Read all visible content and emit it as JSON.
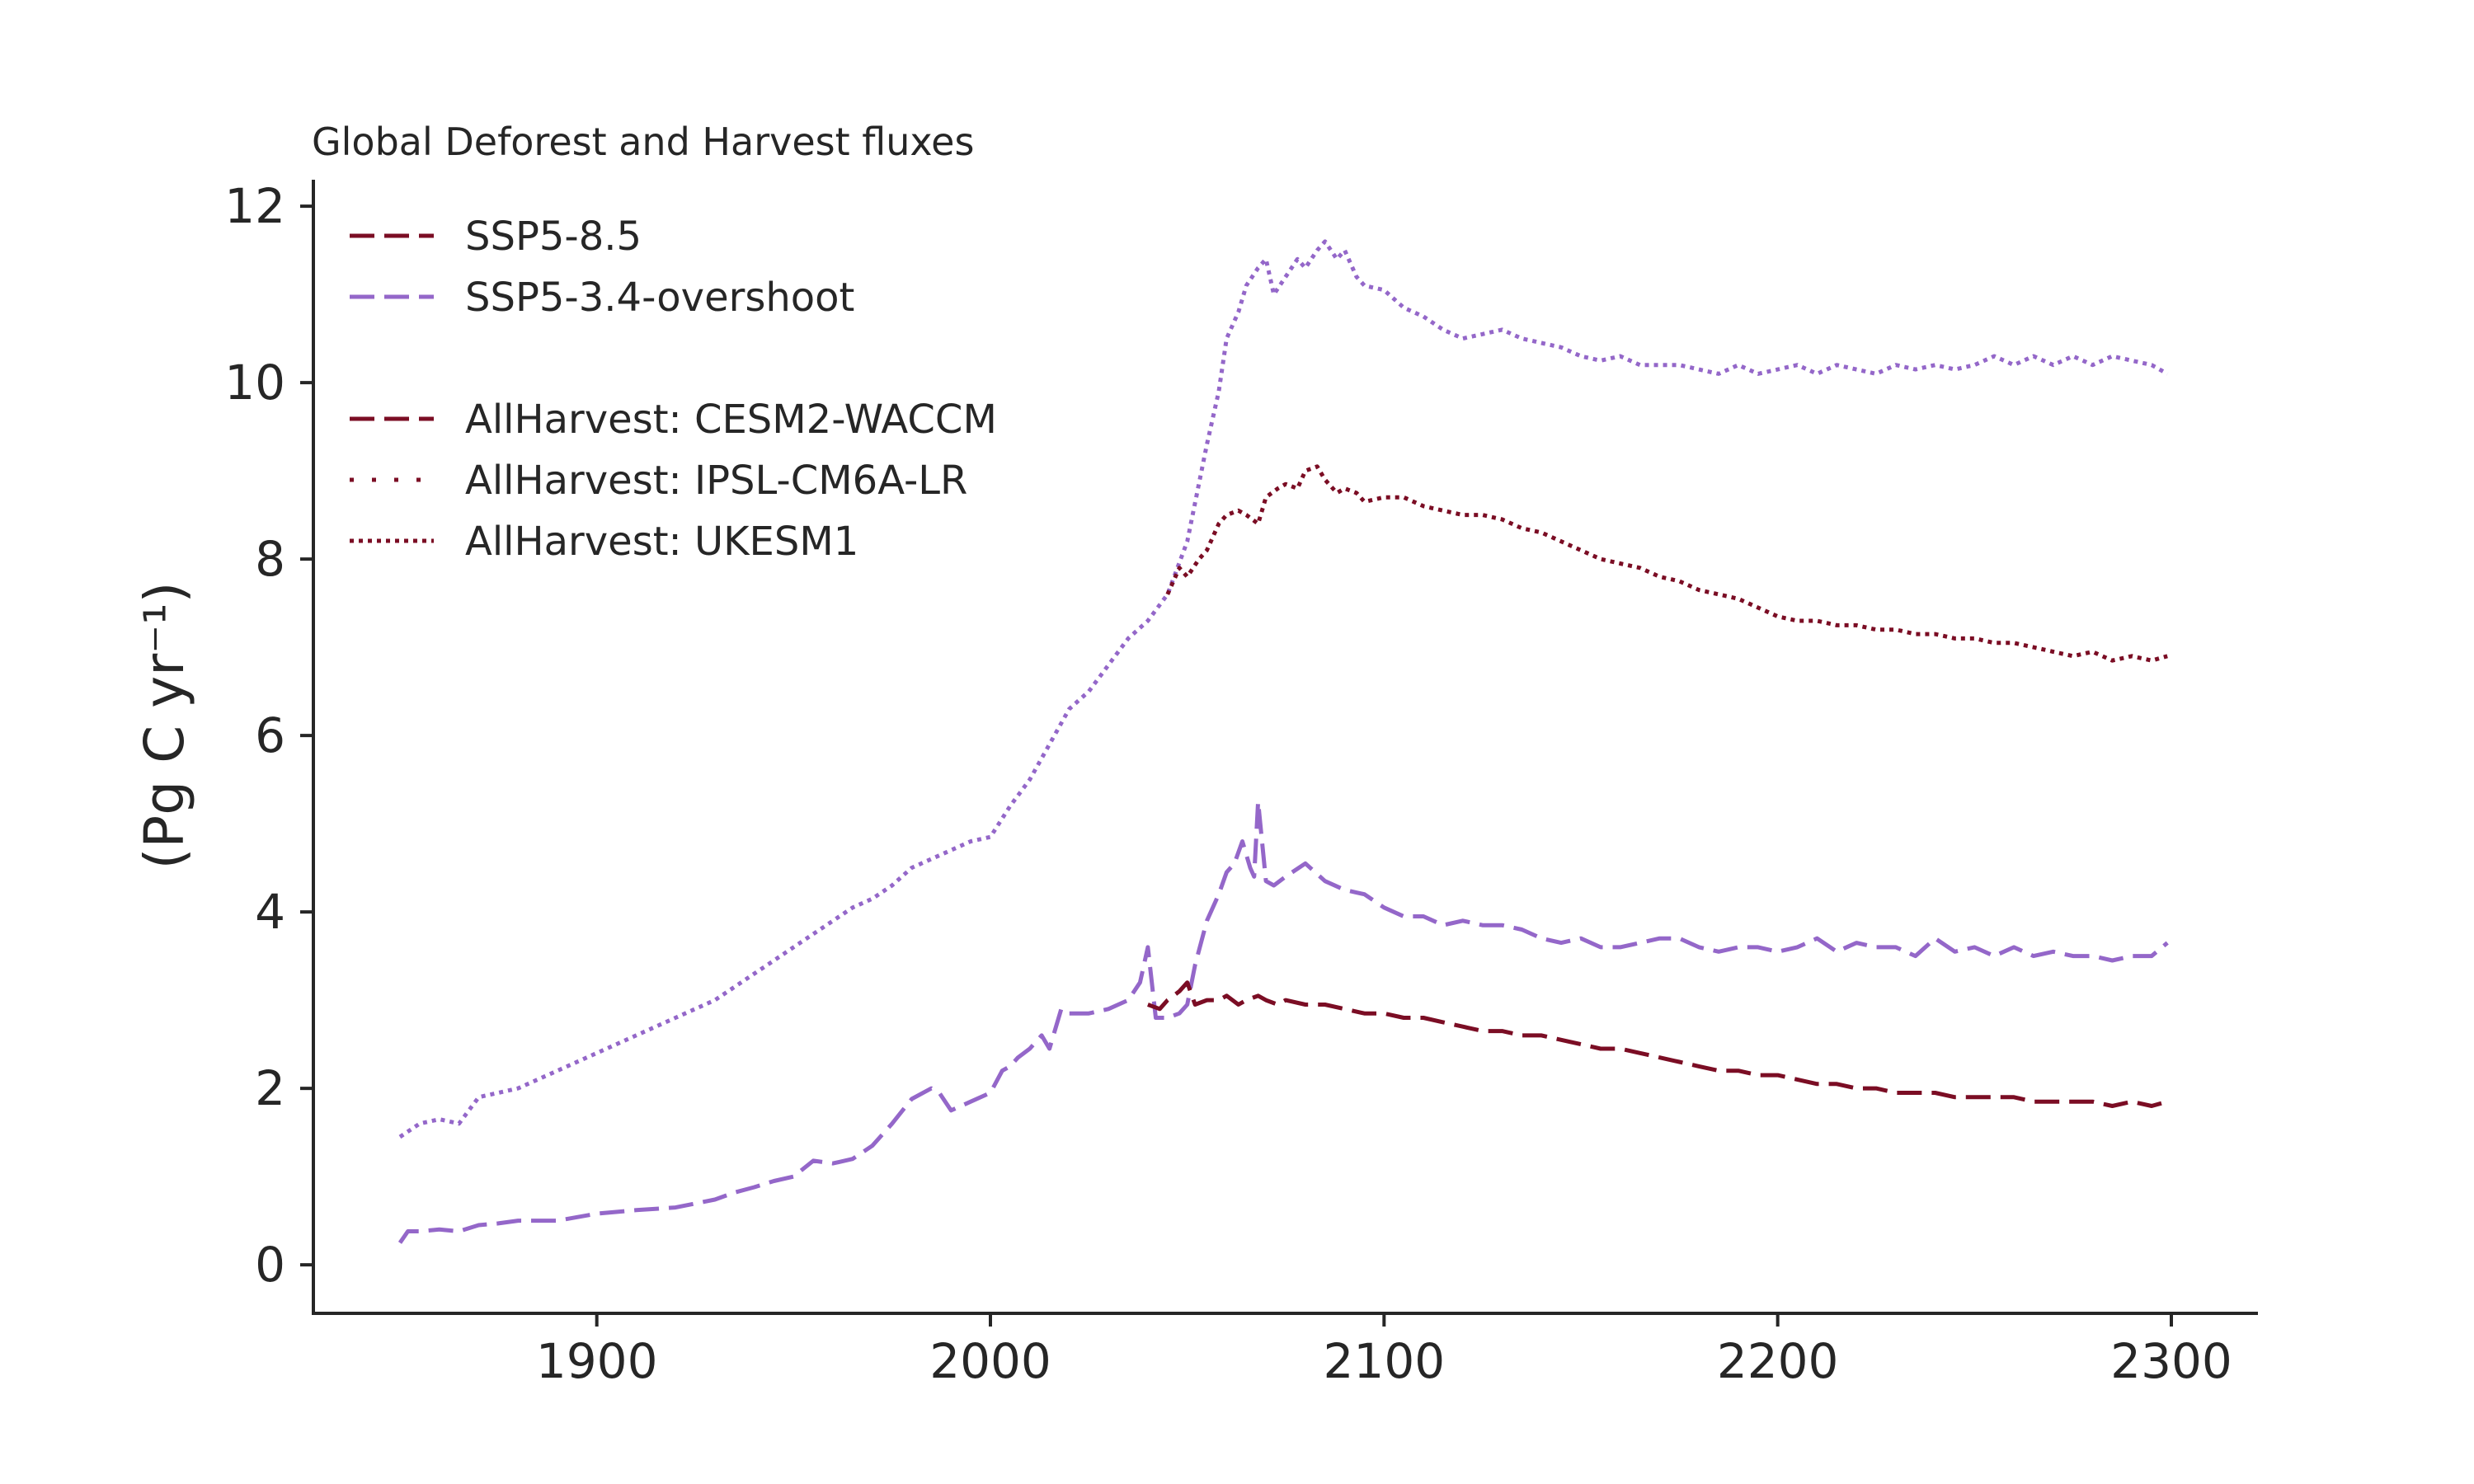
{
  "chart_data": {
    "type": "line",
    "title": "Global Deforest and Harvest fluxes",
    "xlabel": "",
    "ylabel": "(Pg C yr⁻¹)",
    "xlim": [
      1828,
      2322
    ],
    "ylim": [
      -0.55,
      12.3
    ],
    "xticks": [
      1900,
      2000,
      2100,
      2200,
      2300
    ],
    "yticks": [
      0,
      2,
      4,
      6,
      8,
      10,
      12
    ],
    "grid": false,
    "legend": "top-left",
    "colors": {
      "ssp585": "#7b0d24",
      "ssp534": "#9467c9",
      "axis": "#262626"
    },
    "legend_entries": [
      {
        "label": "SSP5-8.5",
        "color": "#7b0d24",
        "dash": "dashed"
      },
      {
        "label": "SSP5-3.4-overshoot",
        "color": "#9467c9",
        "dash": "dashed"
      },
      {
        "label": "",
        "color": "",
        "dash": "none"
      },
      {
        "label": "AllHarvest: CESM2-WACCM",
        "color": "#7b0d24",
        "dash": "dashed"
      },
      {
        "label": "AllHarvest: IPSL-CM6A-LR",
        "color": "#7b0d24",
        "dash": "sparse-dotted"
      },
      {
        "label": "AllHarvest: UKESM1",
        "color": "#7b0d24",
        "dash": "dotted"
      }
    ],
    "series": [
      {
        "scenario": "SSP5-3.4-overshoot",
        "model": "CESM2-WACCM",
        "color": "#9467c9",
        "dash": "dashed",
        "x": [
          1850,
          1852,
          1855,
          1860,
          1865,
          1870,
          1875,
          1880,
          1890,
          1900,
          1910,
          1920,
          1930,
          1935,
          1940,
          1945,
          1950,
          1955,
          1960,
          1965,
          1970,
          1975,
          1980,
          1985,
          1987,
          1990,
          1995,
          2000,
          2003,
          2005,
          2007,
          2010,
          2013,
          2015,
          2018,
          2020,
          2023,
          2025,
          2030,
          2035,
          2038,
          2040,
          2042,
          2045,
          2048,
          2050,
          2052,
          2055,
          2058,
          2060,
          2062,
          2064,
          2066,
          2067,
          2068,
          2070,
          2072,
          2075,
          2080,
          2085,
          2090,
          2095,
          2100,
          2105,
          2110,
          2115,
          2120,
          2125,
          2130,
          2135,
          2140,
          2145,
          2150,
          2155,
          2160,
          2165,
          2170,
          2175,
          2180,
          2185,
          2190,
          2195,
          2200,
          2205,
          2210,
          2215,
          2220,
          2225,
          2230,
          2235,
          2240,
          2245,
          2250,
          2255,
          2260,
          2265,
          2270,
          2275,
          2280,
          2285,
          2290,
          2295,
          2299
        ],
        "y": [
          0.25,
          0.38,
          0.38,
          0.4,
          0.38,
          0.45,
          0.47,
          0.5,
          0.5,
          0.58,
          0.62,
          0.65,
          0.74,
          0.82,
          0.88,
          0.95,
          1.0,
          1.18,
          1.15,
          1.2,
          1.35,
          1.6,
          1.88,
          2.0,
          1.95,
          1.75,
          1.85,
          1.95,
          2.2,
          2.25,
          2.35,
          2.45,
          2.6,
          2.45,
          2.9,
          2.85,
          2.85,
          2.85,
          2.9,
          3.0,
          3.2,
          3.6,
          2.8,
          2.8,
          2.85,
          2.95,
          3.4,
          3.9,
          4.2,
          4.45,
          4.55,
          4.8,
          4.5,
          4.4,
          5.25,
          4.35,
          4.3,
          4.4,
          4.55,
          4.35,
          4.25,
          4.2,
          4.05,
          3.95,
          3.95,
          3.85,
          3.9,
          3.85,
          3.85,
          3.8,
          3.7,
          3.65,
          3.7,
          3.6,
          3.6,
          3.65,
          3.7,
          3.7,
          3.6,
          3.55,
          3.6,
          3.6,
          3.55,
          3.6,
          3.7,
          3.55,
          3.65,
          3.6,
          3.6,
          3.5,
          3.7,
          3.55,
          3.6,
          3.5,
          3.6,
          3.5,
          3.55,
          3.5,
          3.5,
          3.45,
          3.5,
          3.5,
          3.65
        ]
      },
      {
        "scenario": "SSP5-8.5",
        "model": "CESM2-WACCM",
        "color": "#7b0d24",
        "dash": "dashed",
        "x": [
          2040,
          2043,
          2045,
          2048,
          2050,
          2052,
          2055,
          2058,
          2060,
          2063,
          2065,
          2068,
          2070,
          2073,
          2075,
          2080,
          2085,
          2090,
          2095,
          2100,
          2105,
          2110,
          2115,
          2120,
          2125,
          2130,
          2135,
          2140,
          2145,
          2150,
          2155,
          2160,
          2165,
          2170,
          2175,
          2180,
          2185,
          2190,
          2195,
          2200,
          2205,
          2210,
          2215,
          2220,
          2225,
          2230,
          2235,
          2240,
          2245,
          2250,
          2255,
          2260,
          2265,
          2270,
          2275,
          2280,
          2285,
          2290,
          2295,
          2299
        ],
        "y": [
          2.95,
          2.9,
          3.0,
          3.1,
          3.2,
          2.95,
          3.0,
          3.0,
          3.05,
          2.95,
          3.0,
          3.05,
          3.0,
          2.95,
          3.0,
          2.95,
          2.95,
          2.9,
          2.85,
          2.85,
          2.8,
          2.8,
          2.75,
          2.7,
          2.65,
          2.65,
          2.6,
          2.6,
          2.55,
          2.5,
          2.45,
          2.45,
          2.4,
          2.35,
          2.3,
          2.25,
          2.2,
          2.2,
          2.15,
          2.15,
          2.1,
          2.05,
          2.05,
          2.0,
          2.0,
          1.95,
          1.95,
          1.95,
          1.9,
          1.9,
          1.9,
          1.9,
          1.85,
          1.85,
          1.85,
          1.85,
          1.8,
          1.85,
          1.8,
          1.85
        ]
      },
      {
        "scenario": "SSP5-3.4-overshoot",
        "model": "UKESM1",
        "color": "#9467c9",
        "dash": "dotted",
        "x": [
          1850,
          1855,
          1860,
          1865,
          1870,
          1875,
          1880,
          1890,
          1900,
          1910,
          1920,
          1930,
          1935,
          1940,
          1945,
          1950,
          1955,
          1960,
          1965,
          1970,
          1975,
          1980,
          1985,
          1990,
          1995,
          2000,
          2005,
          2010,
          2015,
          2020,
          2025,
          2030,
          2035,
          2040,
          2045,
          2050,
          2055,
          2058,
          2060,
          2063,
          2065,
          2068,
          2070,
          2072,
          2075,
          2078,
          2080,
          2083,
          2085,
          2088,
          2090,
          2093,
          2095,
          2100,
          2105,
          2110,
          2115,
          2120,
          2125,
          2130,
          2135,
          2140,
          2145,
          2150,
          2155,
          2160,
          2165,
          2170,
          2175,
          2180,
          2185,
          2190,
          2195,
          2200,
          2205,
          2210,
          2215,
          2220,
          2225,
          2230,
          2235,
          2240,
          2245,
          2250,
          2255,
          2260,
          2265,
          2270,
          2275,
          2280,
          2285,
          2290,
          2295,
          2299
        ],
        "y": [
          1.45,
          1.6,
          1.65,
          1.6,
          1.9,
          1.95,
          2.0,
          2.2,
          2.4,
          2.6,
          2.8,
          3.0,
          3.15,
          3.3,
          3.45,
          3.6,
          3.75,
          3.9,
          4.05,
          4.15,
          4.3,
          4.5,
          4.6,
          4.7,
          4.8,
          4.85,
          5.2,
          5.5,
          5.9,
          6.3,
          6.5,
          6.8,
          7.1,
          7.3,
          7.6,
          8.2,
          9.3,
          9.9,
          10.5,
          10.8,
          11.1,
          11.3,
          11.4,
          11.0,
          11.2,
          11.4,
          11.3,
          11.5,
          11.6,
          11.4,
          11.5,
          11.2,
          11.1,
          11.05,
          10.85,
          10.75,
          10.6,
          10.5,
          10.55,
          10.6,
          10.5,
          10.45,
          10.4,
          10.3,
          10.25,
          10.3,
          10.2,
          10.2,
          10.2,
          10.15,
          10.1,
          10.2,
          10.1,
          10.15,
          10.2,
          10.1,
          10.2,
          10.15,
          10.1,
          10.2,
          10.15,
          10.2,
          10.15,
          10.2,
          10.3,
          10.2,
          10.3,
          10.2,
          10.3,
          10.2,
          10.3,
          10.25,
          10.2,
          10.1
        ]
      },
      {
        "scenario": "SSP5-8.5",
        "model": "UKESM1",
        "color": "#7b0d24",
        "dash": "dotted",
        "x": [
          2045,
          2048,
          2050,
          2053,
          2055,
          2058,
          2060,
          2063,
          2065,
          2068,
          2070,
          2073,
          2075,
          2078,
          2080,
          2083,
          2085,
          2088,
          2090,
          2093,
          2095,
          2100,
          2105,
          2110,
          2115,
          2120,
          2125,
          2130,
          2135,
          2140,
          2145,
          2150,
          2155,
          2160,
          2165,
          2170,
          2175,
          2180,
          2185,
          2190,
          2195,
          2200,
          2205,
          2210,
          2215,
          2220,
          2225,
          2230,
          2235,
          2240,
          2245,
          2250,
          2255,
          2260,
          2265,
          2270,
          2275,
          2280,
          2285,
          2290,
          2295,
          2299
        ],
        "y": [
          7.6,
          7.9,
          7.8,
          8.0,
          8.1,
          8.4,
          8.5,
          8.55,
          8.5,
          8.4,
          8.7,
          8.8,
          8.85,
          8.8,
          9.0,
          9.05,
          8.9,
          8.75,
          8.8,
          8.75,
          8.65,
          8.7,
          8.7,
          8.6,
          8.55,
          8.5,
          8.5,
          8.45,
          8.35,
          8.3,
          8.2,
          8.1,
          8.0,
          7.95,
          7.9,
          7.8,
          7.75,
          7.65,
          7.6,
          7.55,
          7.45,
          7.35,
          7.3,
          7.3,
          7.25,
          7.25,
          7.2,
          7.2,
          7.15,
          7.15,
          7.1,
          7.1,
          7.05,
          7.05,
          7.0,
          6.95,
          6.9,
          6.95,
          6.85,
          6.9,
          6.85,
          6.9
        ]
      }
    ]
  }
}
